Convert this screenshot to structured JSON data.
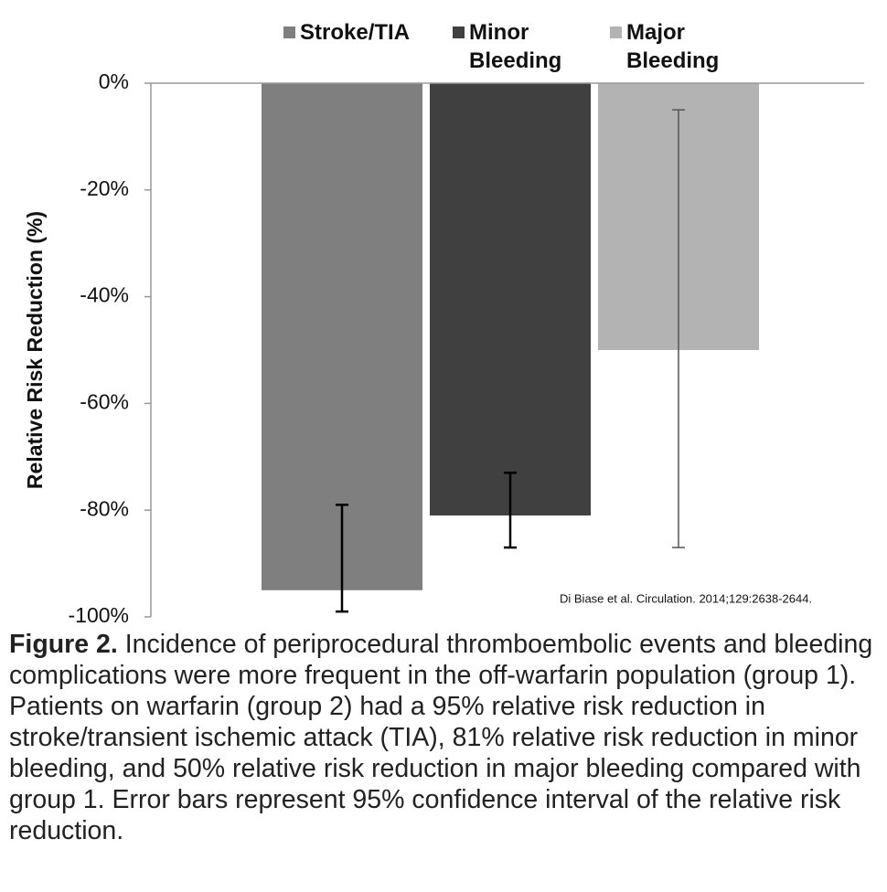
{
  "chart_data": {
    "type": "bar",
    "ylabel": "Relative Risk Reduction (%)",
    "series": [
      {
        "name": "Stroke/TIA",
        "color": "#7f7f7f",
        "values": [
          -95
        ],
        "ci_low": [
          -99
        ],
        "ci_high": [
          -79
        ],
        "error_color": "#000000"
      },
      {
        "name": "Minor Bleeding",
        "color": "#404040",
        "values": [
          -81
        ],
        "ci_low": [
          -87
        ],
        "ci_high": [
          -73
        ],
        "error_color": "#000000"
      },
      {
        "name": "Major Bleeding",
        "color": "#b3b3b3",
        "values": [
          -50
        ],
        "ci_low": [
          -87
        ],
        "ci_high": [
          -5
        ],
        "error_color": "#555555"
      }
    ],
    "ylim": [
      -100,
      0
    ],
    "yticks": [
      {
        "value": 0,
        "label": "0%"
      },
      {
        "value": -20,
        "label": "-20%"
      },
      {
        "value": -40,
        "label": "-40%"
      },
      {
        "value": -60,
        "label": "-60%"
      },
      {
        "value": -80,
        "label": "-80%"
      },
      {
        "value": -100,
        "label": "-100%"
      }
    ],
    "source": "Di Biase et al. Circulation. 2014;129:2638-2644."
  },
  "caption": {
    "label": "Figure 2.",
    "text": "Incidence of periprocedural thromboembolic events and bleeding complications were more frequent in the off-warfarin population (group 1). Patients on warfarin (group 2) had a 95% relative risk reduction in stroke/transient ischemic attack (TIA), 81% relative risk reduction in minor bleeding, and 50% relative risk reduction in major bleeding compared with group 1. Error bars represent 95% confidence interval of the relative risk reduction."
  }
}
